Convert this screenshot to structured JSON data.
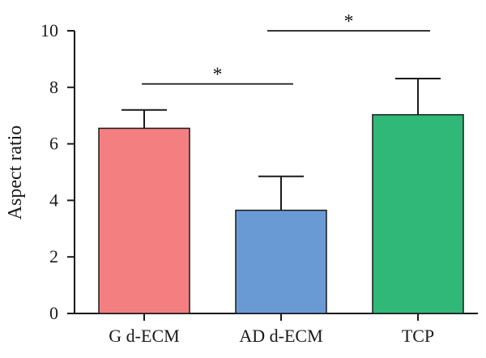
{
  "chart_data": {
    "type": "bar",
    "categories": [
      "G d-ECM",
      "AD d-ECM",
      "TCP"
    ],
    "values": [
      6.55,
      3.65,
      7.03
    ],
    "errors": [
      0.65,
      1.2,
      1.28
    ],
    "colors": [
      "#f37f80",
      "#6a9ad4",
      "#2fb878"
    ],
    "ylabel": "Aspect ratio",
    "ylim": [
      0,
      10
    ],
    "yticks": [
      "0",
      "2",
      "4",
      "6",
      "8",
      "10"
    ],
    "ytick_values": [
      0,
      2,
      4,
      6,
      8,
      10
    ],
    "significance": [
      {
        "from": 0,
        "to": 1,
        "y": 8.12,
        "label": "*"
      },
      {
        "from": 1,
        "to": 2,
        "y": 10.0,
        "label": "*"
      }
    ],
    "grid": false,
    "legend": "none"
  }
}
